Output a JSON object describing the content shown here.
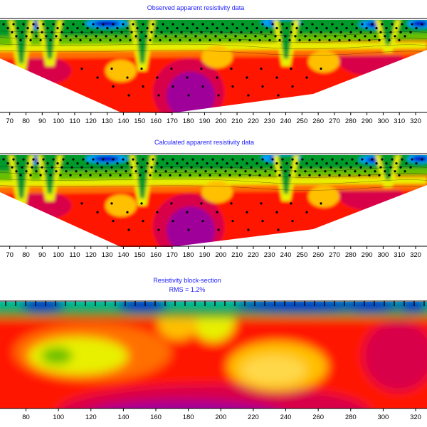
{
  "chart_data": [
    {
      "type": "heatmap",
      "title": "Observed apparent resistivity data",
      "x_ticks": [
        70,
        80,
        90,
        100,
        110,
        120,
        130,
        140,
        150,
        160,
        170,
        180,
        190,
        200,
        210,
        220,
        230,
        240,
        250,
        260,
        270,
        280,
        290,
        300,
        310,
        320
      ],
      "xlim": [
        64,
        327
      ]
    },
    {
      "type": "heatmap",
      "title": "Calculated apparent resistivity data",
      "x_ticks": [
        70,
        80,
        90,
        100,
        110,
        120,
        130,
        140,
        150,
        160,
        170,
        180,
        190,
        200,
        210,
        220,
        230,
        240,
        250,
        260,
        270,
        280,
        290,
        300,
        310,
        320
      ],
      "xlim": [
        64,
        327
      ]
    },
    {
      "type": "heatmap",
      "title": "Resistivity block-section",
      "subtitle": "RMS = 1.2%",
      "x_ticks": [
        80,
        100,
        120,
        140,
        160,
        180,
        200,
        220,
        240,
        260,
        280,
        300,
        320
      ],
      "xlim": [
        64,
        327
      ]
    }
  ],
  "colors": {
    "scale": [
      "#0000cc",
      "#00a0ff",
      "#00c0a0",
      "#009a2a",
      "#66c000",
      "#e8f000",
      "#ffc000",
      "#ff7000",
      "#ff1800",
      "#d8004a",
      "#a0009a",
      "#6a008a"
    ],
    "point": "#000000",
    "title": "#1a1aff"
  }
}
